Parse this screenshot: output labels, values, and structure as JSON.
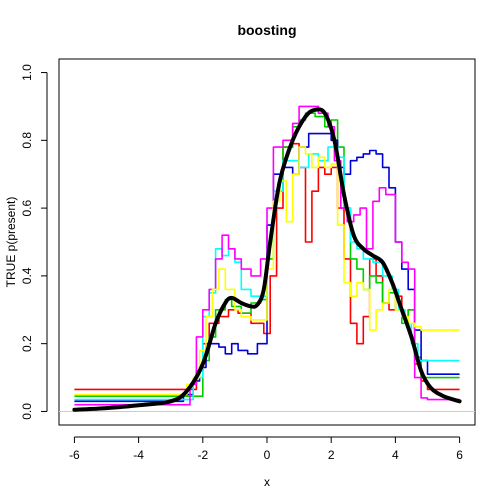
{
  "chart_data": {
    "type": "line",
    "title": "boosting",
    "xlabel": "x",
    "ylabel": "TRUE p(present)",
    "xlim": [
      -6,
      6
    ],
    "ylim": [
      0,
      1
    ],
    "xticks": [
      "-6",
      "-4",
      "-2",
      "0",
      "2",
      "4",
      "6"
    ],
    "yticks": [
      "0.0",
      "0.2",
      "0.4",
      "0.6",
      "0.8",
      "1.0"
    ],
    "grid": false,
    "reference_line": {
      "y": 0,
      "color": "#cccccc"
    },
    "truth": {
      "color": "#000000",
      "points": [
        [
          -6,
          0.005
        ],
        [
          -5,
          0.01
        ],
        [
          -4,
          0.018
        ],
        [
          -3,
          0.03
        ],
        [
          -2.5,
          0.06
        ],
        [
          -2,
          0.14
        ],
        [
          -1.6,
          0.26
        ],
        [
          -1.3,
          0.32
        ],
        [
          -1.1,
          0.335
        ],
        [
          -0.8,
          0.32
        ],
        [
          -0.5,
          0.31
        ],
        [
          -0.3,
          0.315
        ],
        [
          -0.1,
          0.36
        ],
        [
          0.1,
          0.5
        ],
        [
          0.4,
          0.68
        ],
        [
          0.8,
          0.8
        ],
        [
          1.2,
          0.87
        ],
        [
          1.5,
          0.89
        ],
        [
          1.8,
          0.88
        ],
        [
          2.1,
          0.8
        ],
        [
          2.4,
          0.64
        ],
        [
          2.7,
          0.52
        ],
        [
          3.0,
          0.48
        ],
        [
          3.3,
          0.46
        ],
        [
          3.6,
          0.44
        ],
        [
          3.9,
          0.38
        ],
        [
          4.2,
          0.3
        ],
        [
          4.5,
          0.22
        ],
        [
          4.8,
          0.12
        ],
        [
          5.1,
          0.07
        ],
        [
          5.5,
          0.045
        ],
        [
          6,
          0.03
        ]
      ]
    },
    "series": [
      {
        "color": "#ff0000",
        "points": [
          [
            -6,
            0.065
          ],
          [
            -2.4,
            0.065
          ],
          [
            -2.2,
            0.12
          ],
          [
            -2.0,
            0.2
          ],
          [
            -1.8,
            0.26
          ],
          [
            -1.5,
            0.28
          ],
          [
            -1.2,
            0.3
          ],
          [
            -0.9,
            0.29
          ],
          [
            -0.5,
            0.26
          ],
          [
            -0.1,
            0.23
          ],
          [
            0.1,
            0.4
          ],
          [
            0.3,
            0.6
          ],
          [
            0.5,
            0.78
          ],
          [
            0.8,
            0.79
          ],
          [
            1.0,
            0.72
          ],
          [
            1.2,
            0.5
          ],
          [
            1.4,
            0.65
          ],
          [
            1.6,
            0.72
          ],
          [
            1.8,
            0.7
          ],
          [
            2.0,
            0.72
          ],
          [
            2.2,
            0.6
          ],
          [
            2.4,
            0.45
          ],
          [
            2.6,
            0.26
          ],
          [
            2.8,
            0.2
          ],
          [
            3.0,
            0.28
          ],
          [
            3.2,
            0.45
          ],
          [
            3.4,
            0.4
          ],
          [
            3.6,
            0.32
          ],
          [
            3.8,
            0.3
          ],
          [
            4.0,
            0.34
          ],
          [
            4.2,
            0.28
          ],
          [
            4.4,
            0.3
          ],
          [
            4.6,
            0.14
          ],
          [
            4.8,
            0.09
          ],
          [
            5.0,
            0.065
          ],
          [
            6,
            0.065
          ]
        ]
      },
      {
        "color": "#00cc00",
        "points": [
          [
            -6,
            0.045
          ],
          [
            -2.3,
            0.045
          ],
          [
            -2.0,
            0.15
          ],
          [
            -1.8,
            0.22
          ],
          [
            -1.6,
            0.3
          ],
          [
            -1.3,
            0.33
          ],
          [
            -1.1,
            0.31
          ],
          [
            -0.8,
            0.29
          ],
          [
            -0.5,
            0.32
          ],
          [
            -0.2,
            0.33
          ],
          [
            0.0,
            0.45
          ],
          [
            0.2,
            0.65
          ],
          [
            0.5,
            0.78
          ],
          [
            0.8,
            0.84
          ],
          [
            1.0,
            0.86
          ],
          [
            1.2,
            0.88
          ],
          [
            1.5,
            0.87
          ],
          [
            1.8,
            0.84
          ],
          [
            2.0,
            0.86
          ],
          [
            2.2,
            0.78
          ],
          [
            2.4,
            0.6
          ],
          [
            2.6,
            0.45
          ],
          [
            2.8,
            0.42
          ],
          [
            3.0,
            0.36
          ],
          [
            3.2,
            0.4
          ],
          [
            3.4,
            0.38
          ],
          [
            3.6,
            0.32
          ],
          [
            3.8,
            0.35
          ],
          [
            4.0,
            0.3
          ],
          [
            4.2,
            0.26
          ],
          [
            4.4,
            0.3
          ],
          [
            4.6,
            0.16
          ],
          [
            4.8,
            0.1
          ],
          [
            5.0,
            0.1
          ],
          [
            6,
            0.1
          ]
        ]
      },
      {
        "color": "#0000dd",
        "points": [
          [
            -6,
            0.03
          ],
          [
            -2.8,
            0.03
          ],
          [
            -2.6,
            0.05
          ],
          [
            -2.3,
            0.09
          ],
          [
            -2.1,
            0.13
          ],
          [
            -1.9,
            0.2
          ],
          [
            -1.7,
            0.2
          ],
          [
            -1.5,
            0.19
          ],
          [
            -1.3,
            0.17
          ],
          [
            -1.1,
            0.2
          ],
          [
            -0.9,
            0.18
          ],
          [
            -0.6,
            0.17
          ],
          [
            -0.3,
            0.2
          ],
          [
            -0.1,
            0.2
          ],
          [
            0.0,
            0.55
          ],
          [
            0.2,
            0.7
          ],
          [
            0.5,
            0.72
          ],
          [
            0.8,
            0.7
          ],
          [
            1.0,
            0.78
          ],
          [
            1.3,
            0.82
          ],
          [
            1.6,
            0.82
          ],
          [
            2.0,
            0.8
          ],
          [
            2.2,
            0.72
          ],
          [
            2.4,
            0.7
          ],
          [
            2.6,
            0.74
          ],
          [
            2.8,
            0.75
          ],
          [
            3.0,
            0.76
          ],
          [
            3.2,
            0.77
          ],
          [
            3.4,
            0.76
          ],
          [
            3.6,
            0.72
          ],
          [
            3.8,
            0.66
          ],
          [
            4.0,
            0.5
          ],
          [
            4.2,
            0.42
          ],
          [
            4.4,
            0.36
          ],
          [
            4.6,
            0.24
          ],
          [
            4.8,
            0.15
          ],
          [
            5.0,
            0.11
          ],
          [
            6,
            0.11
          ]
        ]
      },
      {
        "color": "#00ffff",
        "points": [
          [
            -6,
            0.035
          ],
          [
            -2.5,
            0.035
          ],
          [
            -2.3,
            0.1
          ],
          [
            -2.0,
            0.28
          ],
          [
            -1.8,
            0.35
          ],
          [
            -1.6,
            0.48
          ],
          [
            -1.4,
            0.46
          ],
          [
            -1.2,
            0.48
          ],
          [
            -1.0,
            0.44
          ],
          [
            -0.8,
            0.36
          ],
          [
            -0.5,
            0.34
          ],
          [
            -0.2,
            0.34
          ],
          [
            0.0,
            0.5
          ],
          [
            0.2,
            0.65
          ],
          [
            0.5,
            0.74
          ],
          [
            0.8,
            0.74
          ],
          [
            1.0,
            0.72
          ],
          [
            1.3,
            0.76
          ],
          [
            1.6,
            0.74
          ],
          [
            1.9,
            0.78
          ],
          [
            2.2,
            0.75
          ],
          [
            2.4,
            0.6
          ],
          [
            2.6,
            0.5
          ],
          [
            2.8,
            0.48
          ],
          [
            3.0,
            0.45
          ],
          [
            3.3,
            0.44
          ],
          [
            3.6,
            0.4
          ],
          [
            3.9,
            0.36
          ],
          [
            4.1,
            0.3
          ],
          [
            4.3,
            0.26
          ],
          [
            4.5,
            0.2
          ],
          [
            4.7,
            0.15
          ],
          [
            6,
            0.15
          ]
        ]
      },
      {
        "color": "#ff00ff",
        "points": [
          [
            -6,
            0.02
          ],
          [
            -2.6,
            0.02
          ],
          [
            -2.4,
            0.08
          ],
          [
            -2.2,
            0.22
          ],
          [
            -2.0,
            0.3
          ],
          [
            -1.8,
            0.36
          ],
          [
            -1.6,
            0.45
          ],
          [
            -1.4,
            0.52
          ],
          [
            -1.2,
            0.48
          ],
          [
            -1.0,
            0.45
          ],
          [
            -0.8,
            0.42
          ],
          [
            -0.5,
            0.4
          ],
          [
            -0.2,
            0.45
          ],
          [
            0.0,
            0.6
          ],
          [
            0.2,
            0.78
          ],
          [
            0.5,
            0.8
          ],
          [
            0.8,
            0.85
          ],
          [
            1.0,
            0.9
          ],
          [
            1.3,
            0.9
          ],
          [
            1.6,
            0.88
          ],
          [
            1.9,
            0.84
          ],
          [
            2.1,
            0.74
          ],
          [
            2.3,
            0.6
          ],
          [
            2.5,
            0.56
          ],
          [
            2.7,
            0.58
          ],
          [
            2.9,
            0.6
          ],
          [
            3.1,
            0.48
          ],
          [
            3.3,
            0.62
          ],
          [
            3.5,
            0.66
          ],
          [
            3.7,
            0.64
          ],
          [
            3.9,
            0.64
          ],
          [
            4.0,
            0.5
          ],
          [
            4.2,
            0.44
          ],
          [
            4.4,
            0.42
          ],
          [
            4.6,
            0.1
          ],
          [
            4.8,
            0.04
          ],
          [
            5.0,
            0.035
          ],
          [
            6,
            0.035
          ]
        ]
      },
      {
        "color": "#ffff00",
        "points": [
          [
            -6,
            0.05
          ],
          [
            -2.7,
            0.05
          ],
          [
            -2.5,
            0.08
          ],
          [
            -2.3,
            0.1
          ],
          [
            -2.1,
            0.18
          ],
          [
            -1.9,
            0.28
          ],
          [
            -1.7,
            0.36
          ],
          [
            -1.5,
            0.42
          ],
          [
            -1.3,
            0.36
          ],
          [
            -1.0,
            0.3
          ],
          [
            -0.8,
            0.28
          ],
          [
            -0.5,
            0.27
          ],
          [
            -0.3,
            0.27
          ],
          [
            0.0,
            0.42
          ],
          [
            0.2,
            0.62
          ],
          [
            0.4,
            0.68
          ],
          [
            0.6,
            0.56
          ],
          [
            0.8,
            0.7
          ],
          [
            1.0,
            0.78
          ],
          [
            1.2,
            0.76
          ],
          [
            1.4,
            0.72
          ],
          [
            1.6,
            0.75
          ],
          [
            1.8,
            0.72
          ],
          [
            2.0,
            0.73
          ],
          [
            2.2,
            0.55
          ],
          [
            2.4,
            0.38
          ],
          [
            2.6,
            0.34
          ],
          [
            2.8,
            0.38
          ],
          [
            3.0,
            0.36
          ],
          [
            3.2,
            0.24
          ],
          [
            3.4,
            0.3
          ],
          [
            3.6,
            0.32
          ],
          [
            3.8,
            0.36
          ],
          [
            4.0,
            0.3
          ],
          [
            4.2,
            0.28
          ],
          [
            4.4,
            0.26
          ],
          [
            4.6,
            0.25
          ],
          [
            4.8,
            0.24
          ],
          [
            6,
            0.24
          ]
        ]
      }
    ]
  }
}
